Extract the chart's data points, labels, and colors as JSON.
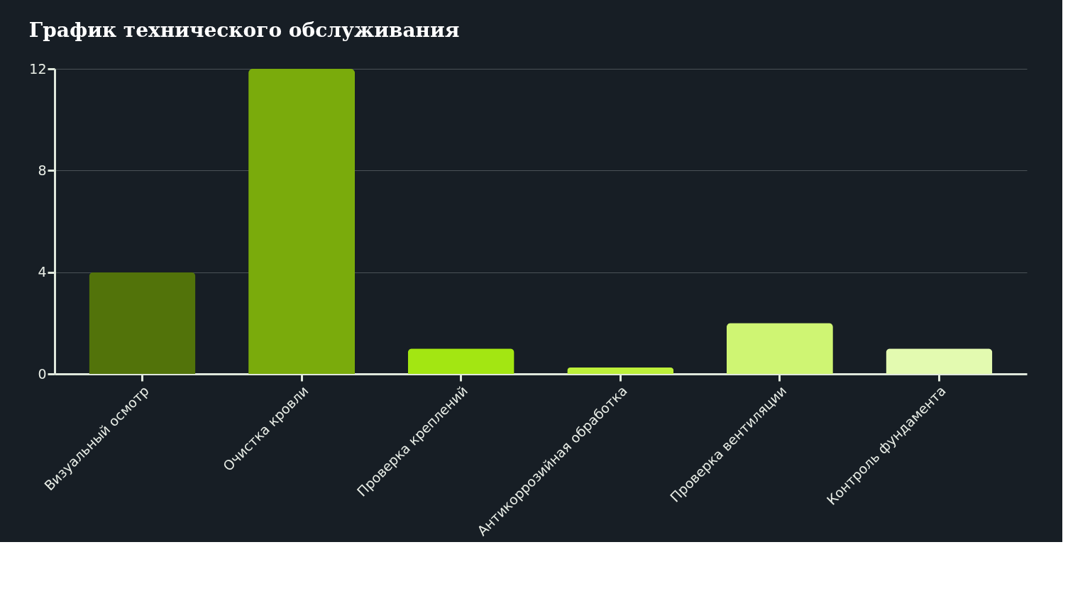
{
  "chart_data": {
    "type": "bar",
    "title": "График технического обслуживания",
    "categories": [
      "Визуальный осмотр",
      "Очистка кровли",
      "Проверка креплений",
      "Антикоррозийная обработка",
      "Проверка вентиляции",
      "Контроль фундамента"
    ],
    "values": [
      4,
      12,
      1,
      0.25,
      2,
      1
    ],
    "colors": [
      "#52730a",
      "#7aab0c",
      "#a3e612",
      "#bdf03a",
      "#cff573",
      "#e3fab0"
    ],
    "ylim": [
      0,
      12
    ],
    "yticks": [
      0,
      4,
      8,
      12
    ],
    "grid": "y"
  }
}
